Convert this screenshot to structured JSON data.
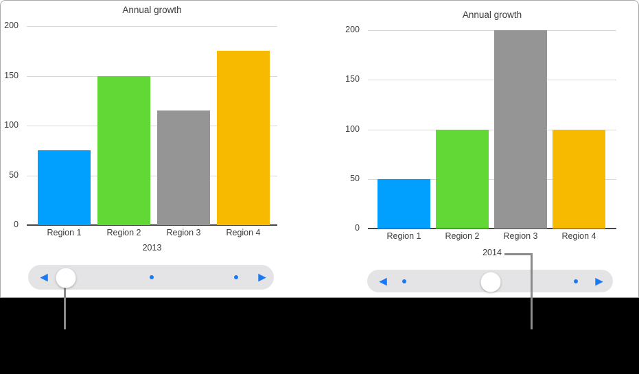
{
  "figure": {
    "panel_border_color": "#a9a9a9",
    "background_color": "#ffffff",
    "caption_area_color": "#000000"
  },
  "ui_colors": {
    "slider_track": "#e4e4e6",
    "slider_accent": "#1b79f2",
    "callout_line": "#8a8a8a",
    "gridline": "#d8d8d8",
    "axis_line": "#454545",
    "text": "#3b3b3b"
  },
  "chart_data": [
    {
      "type": "bar",
      "title": "Annual growth",
      "categories": [
        "Region 1",
        "Region 2",
        "Region 3",
        "Region 4"
      ],
      "values": [
        75,
        150,
        115,
        175
      ],
      "bar_colors": [
        "#019FFE",
        "#61D836",
        "#959595",
        "#F8BA00"
      ],
      "xlabel": "2013",
      "ylabel": "",
      "yticks": [
        0,
        50,
        100,
        150,
        200
      ],
      "ylim": [
        0,
        200
      ],
      "grid": true,
      "legend": false
    },
    {
      "type": "bar",
      "title": "Annual growth",
      "categories": [
        "Region 1",
        "Region 2",
        "Region 3",
        "Region 4"
      ],
      "values": [
        50,
        100,
        200,
        100
      ],
      "bar_colors": [
        "#019FFE",
        "#61D836",
        "#959595",
        "#F8BA00"
      ],
      "xlabel": "2014",
      "ylabel": "",
      "yticks": [
        0,
        50,
        100,
        150,
        200
      ],
      "ylim": [
        0,
        200
      ],
      "grid": true,
      "legend": false
    }
  ],
  "sliders": [
    {
      "name": "chart-scrubber-2013",
      "prev_icon_glyph": "◀",
      "next_icon_glyph": "▶",
      "dot_count": 2,
      "knob_position": "left"
    },
    {
      "name": "chart-scrubber-2014",
      "prev_icon_glyph": "◀",
      "next_icon_glyph": "▶",
      "dot_count": 2,
      "knob_position": "middle"
    }
  ]
}
